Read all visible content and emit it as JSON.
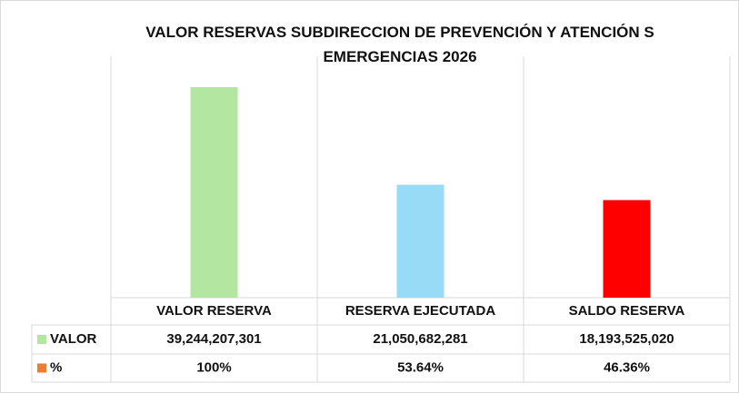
{
  "chart_data": {
    "type": "bar",
    "title": "VALOR RESERVAS SUBDIRECCION DE PREVENCIÓN Y ATENCIÓN S EMERGENCIAS 2026",
    "categories": [
      "VALOR RESERVA",
      "RESERVA EJECUTADA",
      "SALDO RESERVA"
    ],
    "colors": [
      "#b3e6a1",
      "#97dbf7",
      "#ff0000"
    ],
    "ylim": [
      0,
      45000000000
    ],
    "series": [
      {
        "name": "VALOR",
        "color": "#b3e6a1",
        "values": [
          39244207301,
          21050682281,
          18193525020
        ],
        "value_labels": [
          "39,244,207,301",
          "21,050,682,281",
          "18,193,525,020"
        ]
      },
      {
        "name": "%",
        "color": "#ed7d31",
        "values": [
          100,
          53.64,
          46.36
        ],
        "value_labels": [
          "100%",
          "53.64%",
          "46.36%"
        ]
      }
    ]
  }
}
